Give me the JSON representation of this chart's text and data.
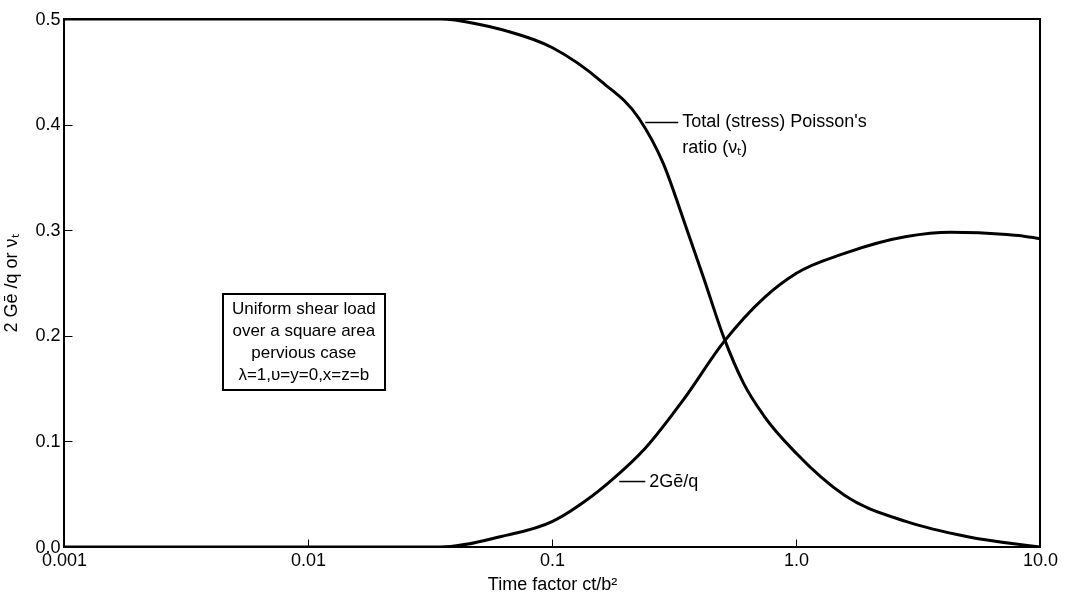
{
  "chart_data": {
    "type": "line",
    "log": "x",
    "xlabel": "Time factor ct/b²",
    "ylabel": "2 Gē /q or νₜ",
    "xlim": [
      0.001,
      10
    ],
    "xticks": [
      0.001,
      0.01,
      0.1,
      {
        "value": 1,
        "label": "1.0"
      },
      {
        "value": 10,
        "label": "10.0"
      }
    ],
    "ylim": [
      0,
      0.5
    ],
    "yticks": [
      {
        "value": 0,
        "label": "0.0"
      },
      0.1,
      0.2,
      0.3,
      0.4,
      0.5
    ],
    "grid": false,
    "marker": "none",
    "line_style": "solid",
    "series": [
      {
        "color": "#000000",
        "x": [
          0.001,
          0.035,
          0.05,
          0.062,
          0.1,
          0.161,
          0.227,
          0.286,
          0.347,
          0.418,
          0.505,
          0.61,
          0.74,
          1.0,
          1.58,
          2.84,
          5.0,
          10
        ],
        "values": [
          0.5,
          0.5,
          0.495,
          0.49,
          0.473,
          0.44,
          0.406,
          0.363,
          0.309,
          0.255,
          0.199,
          0.155,
          0.124,
          0.089,
          0.049,
          0.024,
          0.01,
          0.0
        ]
      },
      {
        "color": "#000000",
        "x": [
          0.001,
          0.035,
          0.062,
          0.1,
          0.136,
          0.177,
          0.24,
          0.347,
          0.505,
          0.74,
          1.0,
          1.58,
          2.84,
          4.3,
          7.3,
          10
        ],
        "values": [
          0.0,
          0.0,
          0.01,
          0.024,
          0.043,
          0.064,
          0.093,
          0.14,
          0.194,
          0.236,
          0.259,
          0.278,
          0.294,
          0.298,
          0.296,
          0.292
        ]
      }
    ],
    "annotations": [
      {
        "text": "Total (stress) Poisson's\nratio (νₜ)",
        "x": 0.23,
        "y": 0.402
      },
      {
        "text": "2Gē/q",
        "x": 0.18,
        "y": 0.062
      },
      "Uniform shear load\nover a square area\npervious case\nλ=1,υ=y=0,x=z=b"
    ]
  }
}
